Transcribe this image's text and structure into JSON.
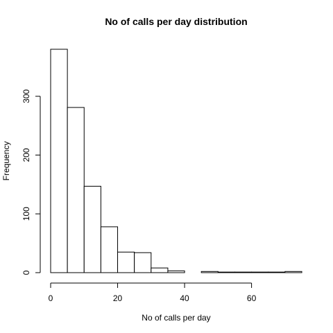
{
  "chart_data": {
    "type": "bar",
    "title": "No of calls per day distribution",
    "xlabel": "No of calls per day",
    "ylabel": "Frequency",
    "bins": [
      {
        "from": 0,
        "to": 5,
        "value": 380
      },
      {
        "from": 5,
        "to": 10,
        "value": 281
      },
      {
        "from": 10,
        "to": 15,
        "value": 147
      },
      {
        "from": 15,
        "to": 20,
        "value": 78
      },
      {
        "from": 20,
        "to": 25,
        "value": 35
      },
      {
        "from": 25,
        "to": 30,
        "value": 34
      },
      {
        "from": 30,
        "to": 35,
        "value": 8
      },
      {
        "from": 35,
        "to": 40,
        "value": 3
      },
      {
        "from": 40,
        "to": 45,
        "value": 0
      },
      {
        "from": 45,
        "to": 50,
        "value": 2
      },
      {
        "from": 50,
        "to": 55,
        "value": 1
      },
      {
        "from": 55,
        "to": 60,
        "value": 1
      },
      {
        "from": 60,
        "to": 65,
        "value": 1
      },
      {
        "from": 65,
        "to": 70,
        "value": 1
      },
      {
        "from": 70,
        "to": 75,
        "value": 2
      }
    ],
    "xlim": [
      0,
      75
    ],
    "ylim": [
      0,
      380
    ],
    "xticks": [
      0,
      20,
      40,
      60
    ],
    "yticks": [
      0,
      100,
      200,
      300
    ],
    "grid": false
  }
}
